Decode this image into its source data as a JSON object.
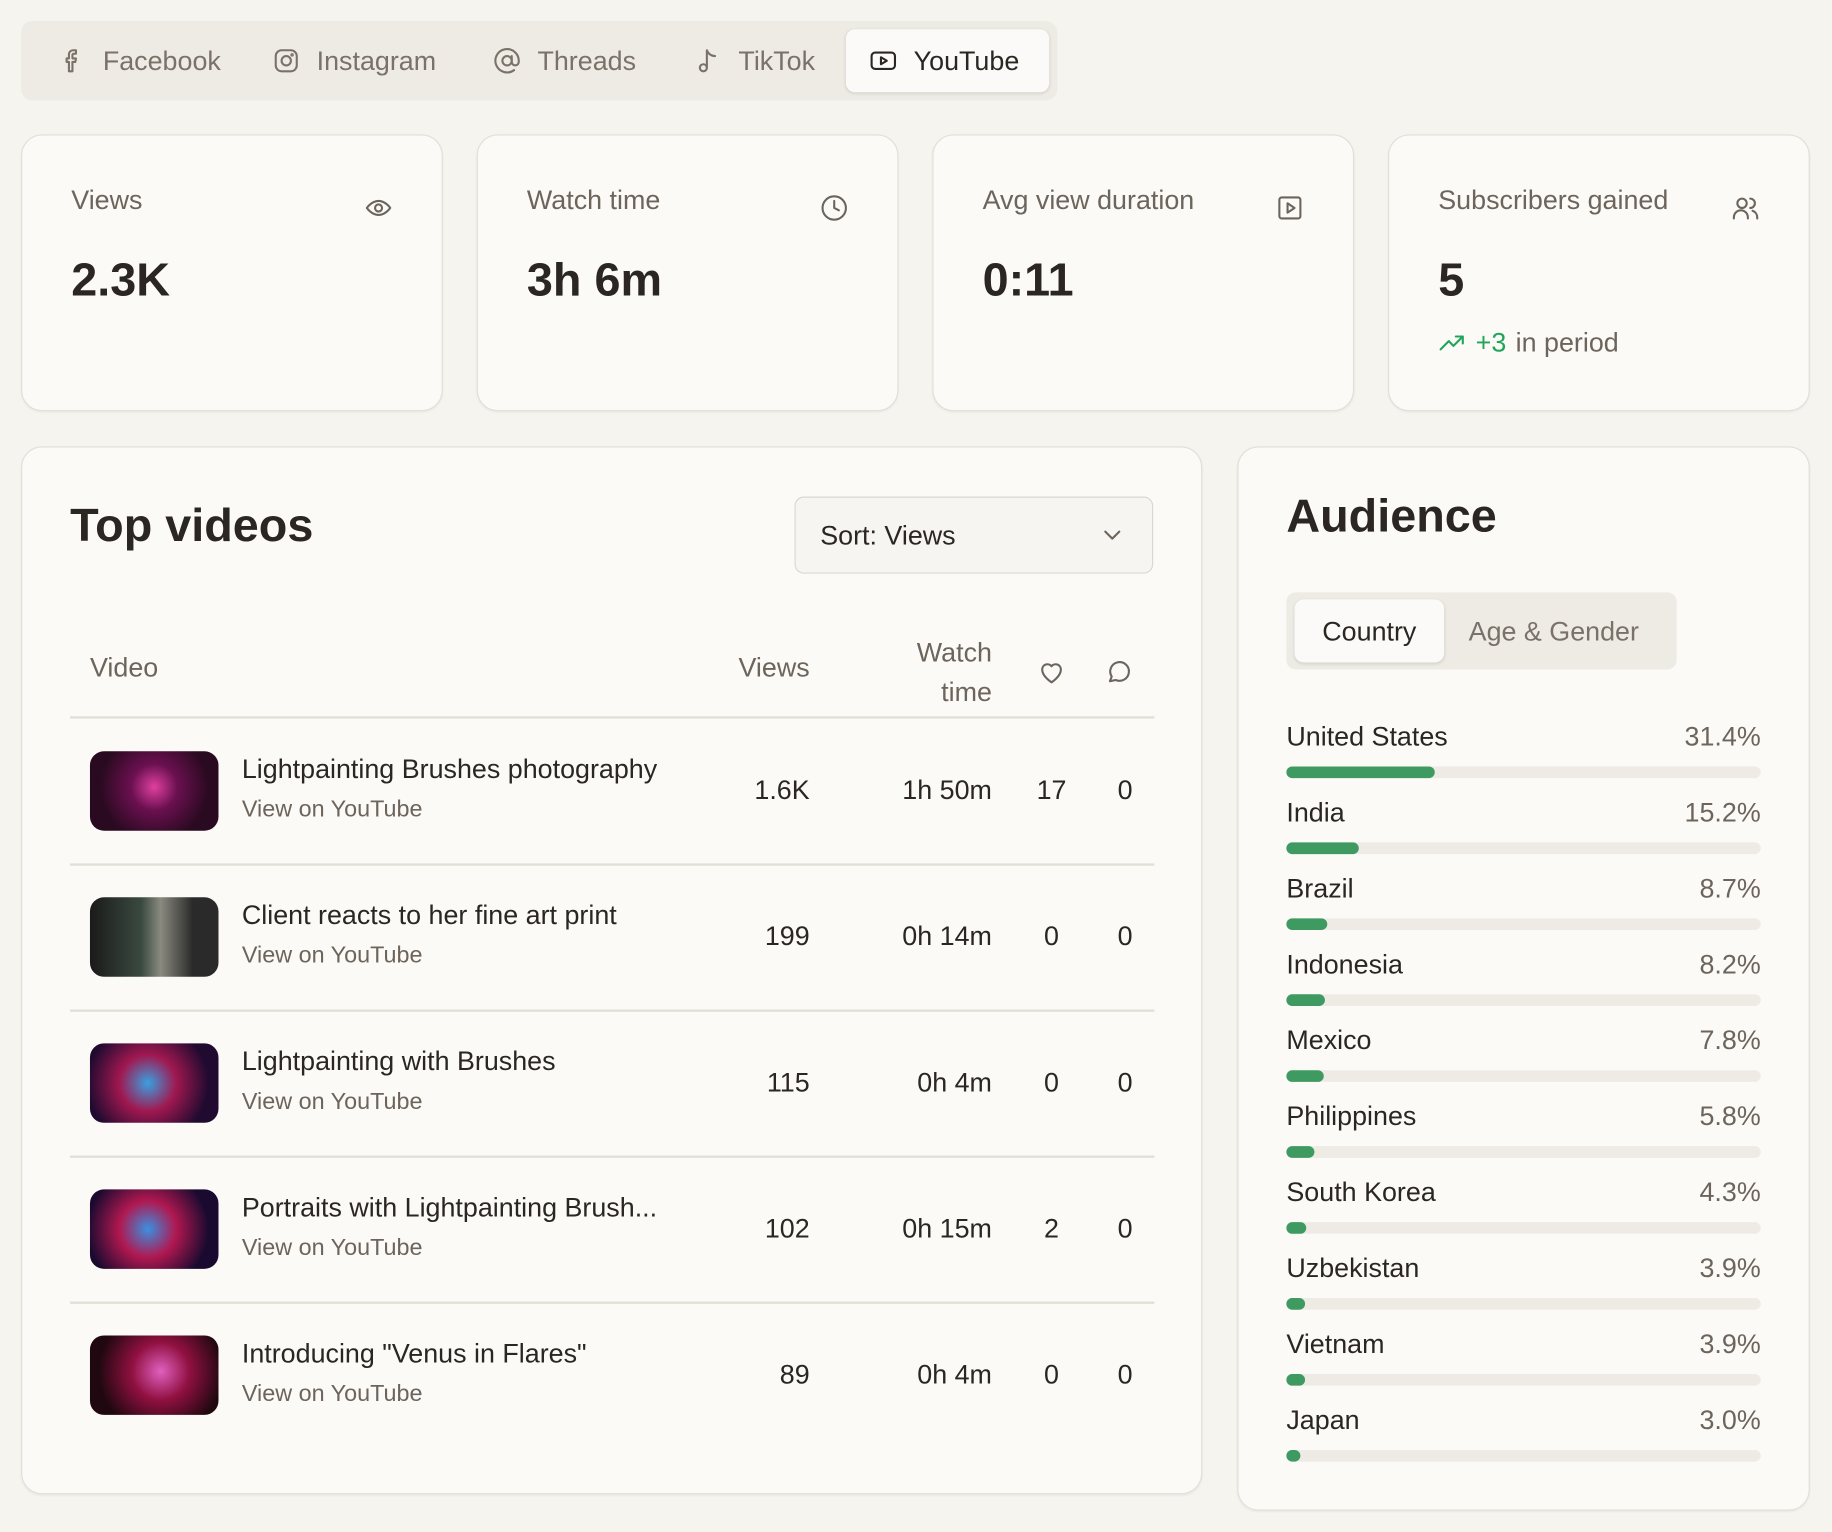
{
  "tabs": [
    "Facebook",
    "Instagram",
    "Threads",
    "TikTok",
    "YouTube"
  ],
  "active_tab": "YouTube",
  "stats": [
    {
      "label": "Views",
      "value": "2.3K"
    },
    {
      "label": "Watch time",
      "value": "3h 6m"
    },
    {
      "label": "Avg view duration",
      "value": "0:11"
    },
    {
      "label": "Subscribers gained",
      "value": "5",
      "change": "+3",
      "change_note": "in period"
    }
  ],
  "top_videos": {
    "title": "Top videos",
    "sort": "Sort: Views",
    "columns": [
      "Video",
      "Views",
      "Watch time"
    ],
    "rows": [
      {
        "title": "Lightpainting Brushes photography",
        "link": "View on YouTube",
        "views": "1.6K",
        "watch_time": "1h 50m",
        "likes": 17,
        "comments": 0
      },
      {
        "title": "Client reacts to her fine art print",
        "link": "View on YouTube",
        "views": "199",
        "watch_time": "0h 14m",
        "likes": 0,
        "comments": 0
      },
      {
        "title": "Lightpainting with Brushes",
        "link": "View on YouTube",
        "views": "115",
        "watch_time": "0h 4m",
        "likes": 0,
        "comments": 0
      },
      {
        "title": "Portraits with Lightpainting Brush...",
        "link": "View on YouTube",
        "views": "102",
        "watch_time": "0h 15m",
        "likes": 2,
        "comments": 0
      },
      {
        "title": "Introducing \"Venus in Flares\"",
        "link": "View on YouTube",
        "views": "89",
        "watch_time": "0h 4m",
        "likes": 0,
        "comments": 0
      }
    ]
  },
  "audience": {
    "title": "Audience",
    "tabs": [
      "Country",
      "Age & Gender"
    ],
    "active_tab": "Country",
    "countries": [
      {
        "name": "United States",
        "share": 31.4,
        "share_label": "31.4%"
      },
      {
        "name": "India",
        "share": 15.2,
        "share_label": "15.2%"
      },
      {
        "name": "Brazil",
        "share": 8.7,
        "share_label": "8.7%"
      },
      {
        "name": "Indonesia",
        "share": 8.2,
        "share_label": "8.2%"
      },
      {
        "name": "Mexico",
        "share": 7.8,
        "share_label": "7.8%"
      },
      {
        "name": "Philippines",
        "share": 5.8,
        "share_label": "5.8%"
      },
      {
        "name": "South Korea",
        "share": 4.3,
        "share_label": "4.3%"
      },
      {
        "name": "Uzbekistan",
        "share": 3.9,
        "share_label": "3.9%"
      },
      {
        "name": "Vietnam",
        "share": 3.9,
        "share_label": "3.9%"
      },
      {
        "name": "Japan",
        "share": 3.0,
        "share_label": "3.0%"
      }
    ]
  }
}
